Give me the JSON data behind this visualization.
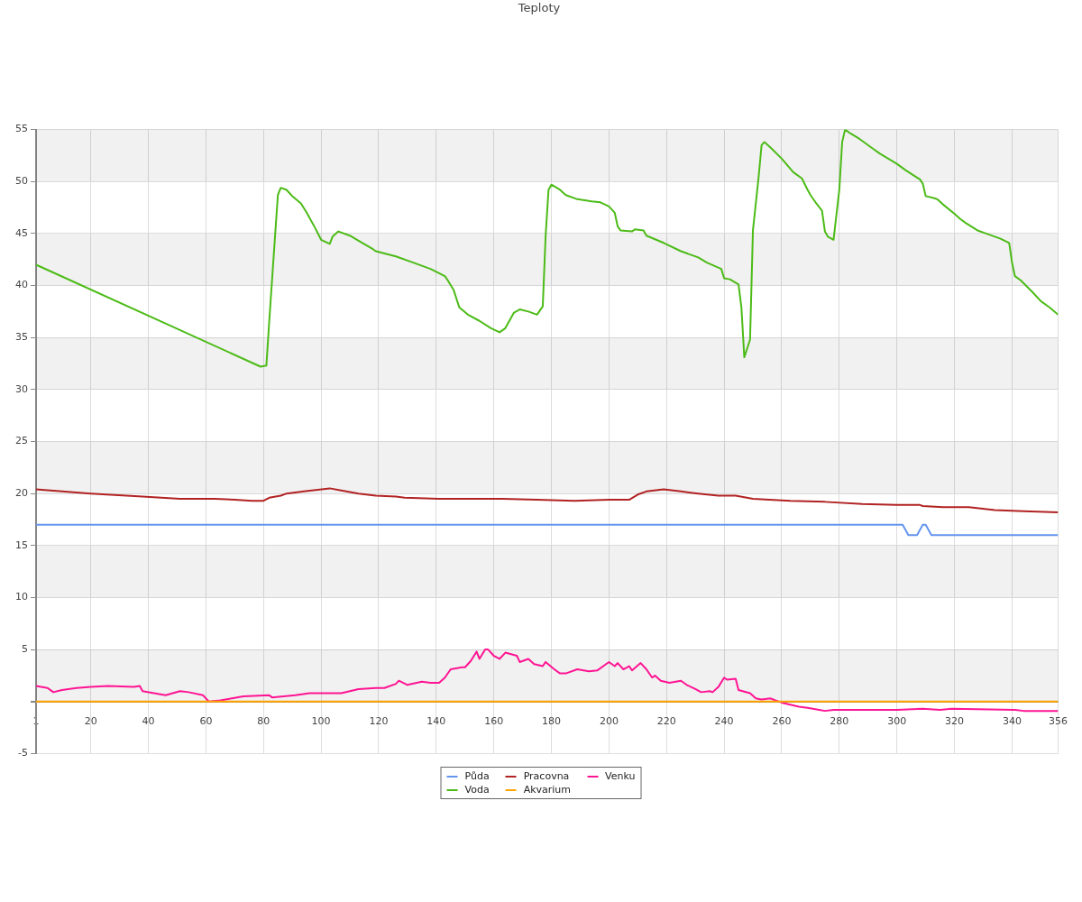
{
  "chart_data": {
    "type": "line",
    "title": "Teploty",
    "xlim": [
      1,
      356
    ],
    "xticks": [
      1,
      20,
      40,
      60,
      80,
      100,
      120,
      140,
      160,
      180,
      200,
      220,
      240,
      260,
      280,
      300,
      320,
      340,
      356
    ],
    "ylim": [
      -5,
      55
    ],
    "yticks": [
      -5,
      {
        "value": 0,
        "label": null
      },
      5,
      10,
      15,
      20,
      25,
      30,
      35,
      40,
      45,
      50,
      55
    ],
    "grid": true,
    "legend": "bottom",
    "marker": "none",
    "series": [
      {
        "name": "Půda",
        "color": "#6495ed",
        "x": [
          1,
          302,
          304,
          307,
          309,
          310,
          312,
          356
        ],
        "values": [
          17,
          17,
          16,
          16,
          17,
          17,
          16,
          16
        ]
      },
      {
        "name": "Voda",
        "color": "#4cbb17",
        "x": [
          1,
          79,
          81,
          82,
          84,
          85,
          86,
          88,
          90,
          93,
          95,
          98,
          100,
          103,
          104,
          106,
          110,
          113,
          118,
          119,
          126,
          132,
          138,
          143,
          144,
          146,
          148,
          151,
          155,
          159,
          162,
          164,
          167,
          169,
          172,
          175,
          177,
          178,
          179,
          180,
          183,
          185,
          189,
          194,
          197,
          200,
          202,
          203,
          204,
          208,
          209,
          212,
          213,
          219,
          225,
          231,
          234,
          239,
          240,
          242,
          245,
          246,
          247,
          249,
          250,
          252,
          253,
          254,
          256,
          260,
          264,
          267,
          269,
          270,
          272,
          274,
          275,
          276,
          278,
          280,
          281,
          282,
          284,
          287,
          291,
          294,
          297,
          300,
          303,
          308,
          309,
          310,
          313,
          314,
          316,
          320,
          322,
          324,
          328,
          331,
          336,
          339,
          340,
          341,
          343,
          347,
          350,
          353,
          356
        ],
        "values": [
          42.0,
          32.2,
          32.3,
          36.6,
          44.7,
          48.7,
          49.4,
          49.2,
          48.6,
          47.9,
          47.0,
          45.5,
          44.4,
          44.0,
          44.7,
          45.2,
          44.8,
          44.3,
          43.5,
          43.3,
          42.8,
          42.2,
          41.6,
          40.9,
          40.5,
          39.6,
          37.9,
          37.2,
          36.6,
          35.9,
          35.5,
          35.9,
          37.4,
          37.7,
          37.5,
          37.2,
          38.0,
          44.8,
          49.2,
          49.7,
          49.2,
          48.7,
          48.3,
          48.1,
          48.0,
          47.6,
          47.0,
          45.7,
          45.3,
          45.2,
          45.4,
          45.3,
          44.8,
          44.1,
          43.3,
          42.7,
          42.2,
          41.6,
          40.7,
          40.6,
          40.1,
          37.9,
          33.1,
          34.8,
          45.3,
          50.5,
          53.5,
          53.8,
          53.3,
          52.2,
          50.9,
          50.3,
          49.2,
          48.7,
          47.9,
          47.2,
          45.2,
          44.7,
          44.4,
          49.2,
          53.8,
          55.0,
          54.6,
          54.1,
          53.3,
          52.7,
          52.2,
          51.7,
          51.1,
          50.2,
          49.8,
          48.6,
          48.4,
          48.3,
          47.8,
          46.9,
          46.4,
          46.0,
          45.3,
          45.0,
          44.5,
          44.1,
          42.2,
          40.9,
          40.5,
          39.4,
          38.5,
          37.9,
          37.2
        ]
      },
      {
        "name": "Pracovna",
        "color": "#b22222",
        "x": [
          1,
          20,
          38,
          51,
          63,
          70,
          76,
          80,
          82,
          86,
          88,
          94,
          103,
          107,
          113,
          119,
          126,
          129,
          141,
          154,
          163,
          175,
          188,
          200,
          207,
          210,
          213,
          219,
          225,
          231,
          238,
          244,
          250,
          263,
          275,
          288,
          300,
          308,
          309,
          316,
          325,
          334,
          344,
          356
        ],
        "values": [
          20.4,
          20.0,
          19.7,
          19.5,
          19.5,
          19.4,
          19.3,
          19.3,
          19.6,
          19.8,
          20.0,
          20.2,
          20.5,
          20.3,
          20.0,
          19.8,
          19.7,
          19.6,
          19.5,
          19.5,
          19.5,
          19.4,
          19.3,
          19.4,
          19.4,
          19.9,
          20.2,
          20.4,
          20.2,
          20.0,
          19.8,
          19.8,
          19.5,
          19.3,
          19.2,
          19.0,
          18.9,
          18.9,
          18.8,
          18.7,
          18.7,
          18.4,
          18.3,
          18.2
        ]
      },
      {
        "name": "Akvarium",
        "color": "#ffa500",
        "x": [
          1,
          356
        ],
        "values": [
          0,
          0
        ]
      },
      {
        "name": "Venku",
        "color": "#ff1493",
        "x": [
          1,
          5,
          7,
          10,
          15,
          20,
          26,
          35,
          37,
          38,
          46,
          51,
          54,
          59,
          61,
          65,
          69,
          73,
          82,
          83,
          91,
          96,
          101,
          107,
          113,
          119,
          122,
          126,
          127,
          130,
          135,
          138,
          141,
          143,
          145,
          149,
          150,
          152,
          154,
          155,
          157,
          158,
          160,
          162,
          164,
          168,
          169,
          172,
          174,
          177,
          178,
          181,
          183,
          185,
          189,
          193,
          196,
          199,
          200,
          202,
          203,
          205,
          207,
          208,
          211,
          213,
          215,
          216,
          218,
          221,
          225,
          227,
          230,
          232,
          235,
          236,
          238,
          240,
          241,
          244,
          245,
          249,
          251,
          253,
          256,
          258,
          260,
          263,
          266,
          269,
          273,
          275,
          278,
          300,
          309,
          315,
          319,
          341,
          344,
          356
        ],
        "values": [
          1.5,
          1.3,
          0.9,
          1.1,
          1.3,
          1.4,
          1.5,
          1.4,
          1.5,
          1.0,
          0.6,
          1.0,
          0.9,
          0.6,
          0.0,
          0.1,
          0.3,
          0.5,
          0.6,
          0.4,
          0.6,
          0.8,
          0.8,
          0.8,
          1.2,
          1.3,
          1.3,
          1.7,
          2.0,
          1.6,
          1.9,
          1.8,
          1.8,
          2.3,
          3.1,
          3.3,
          3.3,
          3.9,
          4.8,
          4.1,
          5.0,
          5.0,
          4.4,
          4.1,
          4.7,
          4.4,
          3.8,
          4.1,
          3.6,
          3.4,
          3.8,
          3.1,
          2.7,
          2.7,
          3.1,
          2.9,
          3.0,
          3.6,
          3.8,
          3.4,
          3.7,
          3.1,
          3.4,
          3.0,
          3.7,
          3.1,
          2.3,
          2.5,
          2.0,
          1.8,
          2.0,
          1.6,
          1.2,
          0.9,
          1.0,
          0.9,
          1.4,
          2.3,
          2.1,
          2.2,
          1.1,
          0.8,
          0.3,
          0.2,
          0.3,
          0.1,
          -0.1,
          -0.3,
          -0.5,
          -0.6,
          -0.8,
          -0.9,
          -0.8,
          -0.8,
          -0.7,
          -0.8,
          -0.7,
          -0.8,
          -0.9,
          -0.9
        ]
      }
    ]
  }
}
